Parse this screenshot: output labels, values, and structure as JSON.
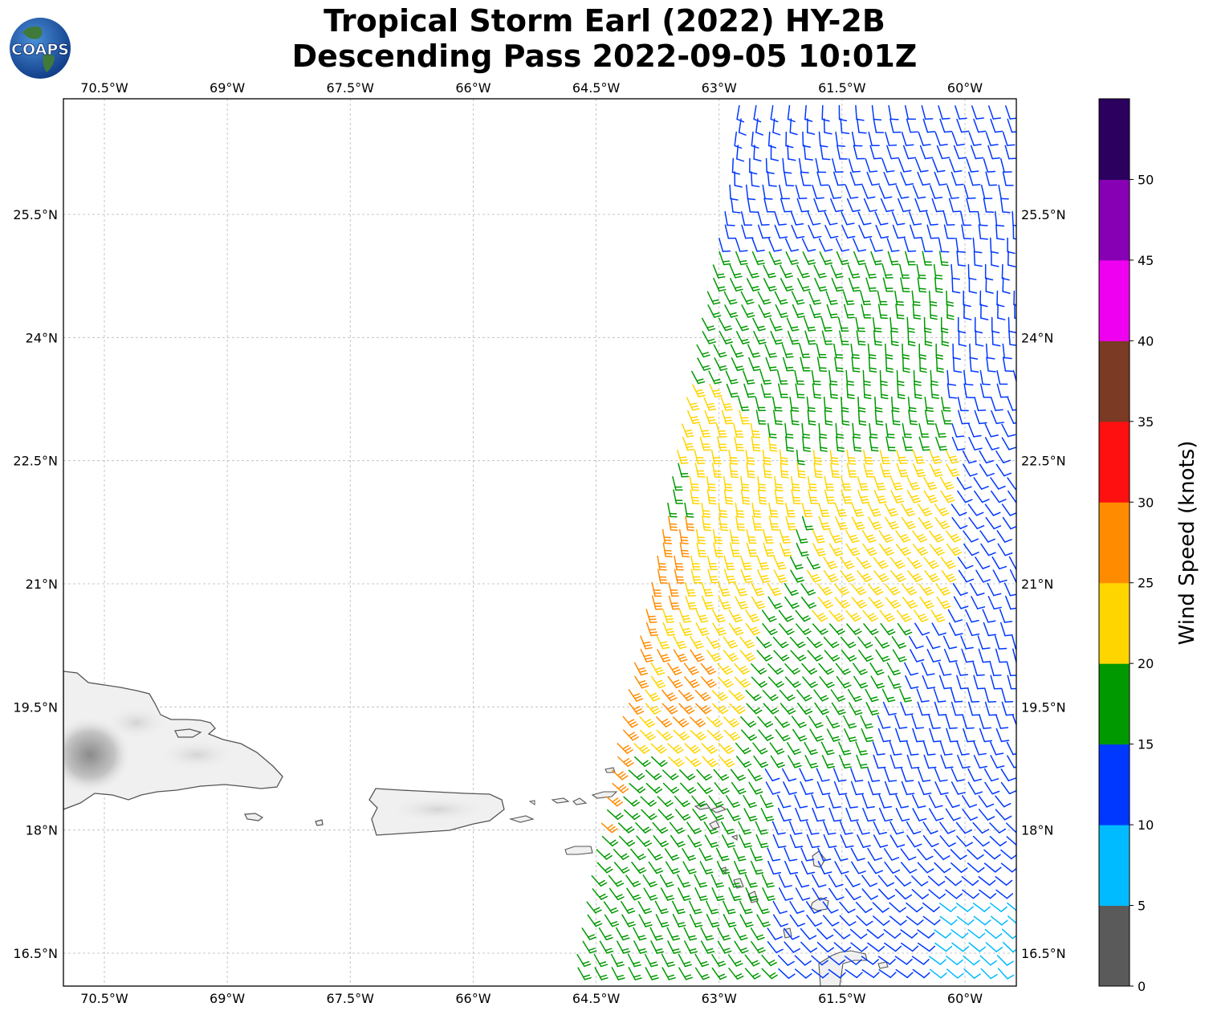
{
  "title": {
    "line1": "Tropical Storm Earl (2022) HY-2B",
    "line2": "Descending Pass 2022-09-05 10:01Z"
  },
  "logo": {
    "text": "COAPS",
    "icon": "globe-icon"
  },
  "map": {
    "lon_ticks": [
      "70.5°W",
      "69°W",
      "67.5°W",
      "66°W",
      "64.5°W",
      "63°W",
      "61.5°W",
      "60°W"
    ],
    "lat_ticks": [
      "25.5°N",
      "24°N",
      "22.5°N",
      "21°N",
      "19.5°N",
      "18°N",
      "16.5°N"
    ],
    "lon_range": [
      -71.0,
      -59.4
    ],
    "lat_range": [
      16.1,
      26.9
    ],
    "grid": true,
    "land_color": "#f0f0f0",
    "coast_color": "#555555"
  },
  "colorbar": {
    "label": "Wind Speed (knots)",
    "ticks": [
      "0",
      "5",
      "10",
      "15",
      "20",
      "25",
      "30",
      "35",
      "40",
      "45",
      "50"
    ],
    "colors": [
      "#5a5a5a",
      "#00bbff",
      "#0038ff",
      "#009900",
      "#ffd500",
      "#ff8c00",
      "#ff1010",
      "#7a3a24",
      "#f000f0",
      "#8800b3",
      "#2b005e"
    ]
  }
}
